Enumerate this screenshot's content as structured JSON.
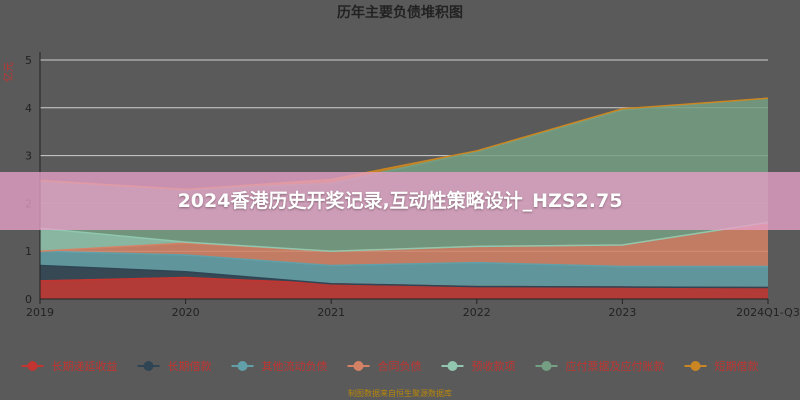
{
  "chart_data": {
    "type": "area",
    "stacked": true,
    "title": "历年主要负债堆积图",
    "ylabel": "亿元",
    "categories": [
      "2019",
      "2020",
      "2021",
      "2022",
      "2023",
      "2024Q1-Q3"
    ],
    "ylim": [
      0,
      5
    ],
    "yticks": [
      0,
      1,
      2,
      3,
      4,
      5
    ],
    "grid": true,
    "legend_position": "bottom",
    "series": [
      {
        "name": "长期递延收益",
        "color": "#c23531",
        "values": [
          0.38,
          0.45,
          0.32,
          0.26,
          0.25,
          0.24
        ]
      },
      {
        "name": "长期借款",
        "color": "#2f4554",
        "values": [
          0.32,
          0.12,
          0.0,
          0.0,
          0.0,
          0.0
        ]
      },
      {
        "name": "其他流动负债",
        "color": "#61a0a8",
        "values": [
          0.3,
          0.35,
          0.38,
          0.5,
          0.43,
          0.44
        ]
      },
      {
        "name": "合同负债",
        "color": "#d48265",
        "values": [
          0.0,
          0.25,
          0.3,
          0.34,
          0.45,
          0.92
        ]
      },
      {
        "name": "预收款项",
        "color": "#91c7ae",
        "values": [
          0.48,
          0.02,
          0.0,
          0.0,
          0.0,
          0.0
        ]
      },
      {
        "name": "应付票据及应付账款",
        "color": "#749f83",
        "values": [
          1.0,
          1.1,
          1.42,
          1.98,
          2.82,
          2.6
        ]
      },
      {
        "name": "短期借款",
        "color": "#ca8622",
        "values": [
          0.0,
          0.0,
          0.08,
          0.02,
          0.03,
          0.0
        ]
      }
    ],
    "footnote": "制图数据来自恒生聚源数据库"
  },
  "banner": {
    "text": "2024香港历史开奖记录,互动性策略设计_HZS2.75"
  }
}
